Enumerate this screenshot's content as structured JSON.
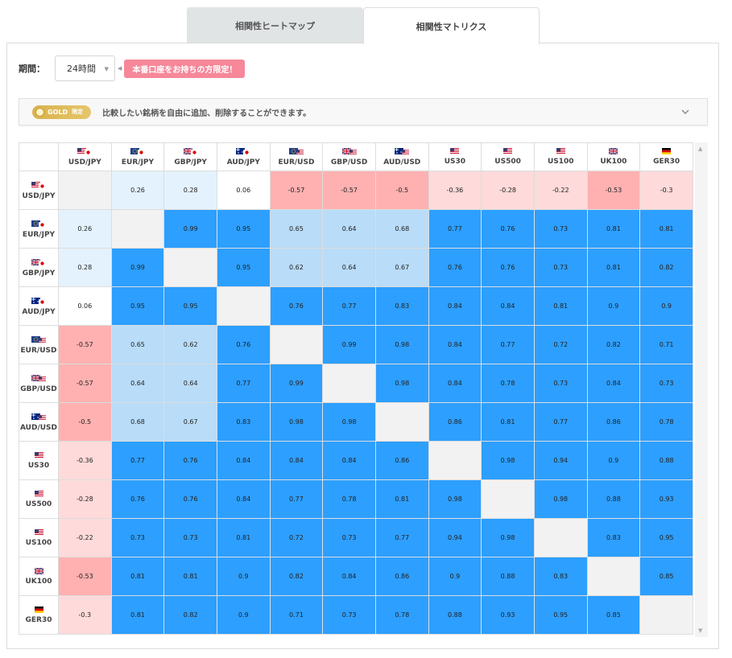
{
  "tabs": [
    {
      "label": "相関性ヒートマップ",
      "active": false
    },
    {
      "label": "相関性マトリクス",
      "active": true
    }
  ],
  "period": {
    "label": "期間：",
    "value": "24時間"
  },
  "live_badge": "本番口座をお持ちの方限定！",
  "gold": {
    "badge": "GOLD",
    "badge_sub": "限定",
    "text": "比較したい銘柄を自由に追加、削除することができます。"
  },
  "colors": {
    "strong": "#2d9fff",
    "mid": "#b9dcf8",
    "light": "#e4f2fd",
    "neg_strong": "#ffb1b1",
    "neg_light": "#ffdada",
    "diag": "#f2f2f2"
  },
  "matrix": {
    "symbols": [
      {
        "label": "USD/JPY",
        "flags": [
          "us",
          "jp"
        ]
      },
      {
        "label": "EUR/JPY",
        "flags": [
          "eu",
          "jp"
        ]
      },
      {
        "label": "GBP/JPY",
        "flags": [
          "uk",
          "jp"
        ]
      },
      {
        "label": "AUD/JPY",
        "flags": [
          "au",
          "jp"
        ]
      },
      {
        "label": "EUR/USD",
        "flags": [
          "eu",
          "us"
        ]
      },
      {
        "label": "GBP/USD",
        "flags": [
          "uk",
          "us"
        ]
      },
      {
        "label": "AUD/USD",
        "flags": [
          "au",
          "us"
        ]
      },
      {
        "label": "US30",
        "flags": [
          "us"
        ]
      },
      {
        "label": "US500",
        "flags": [
          "us"
        ]
      },
      {
        "label": "US100",
        "flags": [
          "us"
        ]
      },
      {
        "label": "UK100",
        "flags": [
          "uk"
        ]
      },
      {
        "label": "GER30",
        "flags": [
          "de"
        ]
      }
    ],
    "values": [
      [
        null,
        0.26,
        0.28,
        0.06,
        -0.57,
        -0.57,
        -0.5,
        -0.36,
        -0.28,
        -0.22,
        -0.53,
        -0.3
      ],
      [
        0.26,
        null,
        0.99,
        0.95,
        0.65,
        0.64,
        0.68,
        0.77,
        0.76,
        0.73,
        0.81,
        0.81
      ],
      [
        0.28,
        0.99,
        null,
        0.95,
        0.62,
        0.64,
        0.67,
        0.76,
        0.76,
        0.73,
        0.81,
        0.82
      ],
      [
        0.06,
        0.95,
        0.95,
        null,
        0.76,
        0.77,
        0.83,
        0.84,
        0.84,
        0.81,
        0.9,
        0.9
      ],
      [
        -0.57,
        0.65,
        0.62,
        0.76,
        null,
        0.99,
        0.98,
        0.84,
        0.77,
        0.72,
        0.82,
        0.71
      ],
      [
        -0.57,
        0.64,
        0.64,
        0.77,
        0.99,
        null,
        0.98,
        0.84,
        0.78,
        0.73,
        0.84,
        0.73
      ],
      [
        -0.5,
        0.68,
        0.67,
        0.83,
        0.98,
        0.98,
        null,
        0.86,
        0.81,
        0.77,
        0.86,
        0.78
      ],
      [
        -0.36,
        0.77,
        0.76,
        0.84,
        0.84,
        0.84,
        0.86,
        null,
        0.98,
        0.94,
        0.9,
        0.88
      ],
      [
        -0.28,
        0.76,
        0.76,
        0.84,
        0.77,
        0.78,
        0.81,
        0.98,
        null,
        0.98,
        0.88,
        0.93
      ],
      [
        -0.22,
        0.73,
        0.73,
        0.81,
        0.72,
        0.73,
        0.77,
        0.94,
        0.98,
        null,
        0.83,
        0.95
      ],
      [
        -0.53,
        0.81,
        0.81,
        0.9,
        0.82,
        0.84,
        0.86,
        0.9,
        0.88,
        0.83,
        null,
        0.85
      ],
      [
        -0.3,
        0.81,
        0.82,
        0.9,
        0.71,
        0.73,
        0.78,
        0.88,
        0.93,
        0.95,
        0.85,
        null
      ]
    ]
  }
}
